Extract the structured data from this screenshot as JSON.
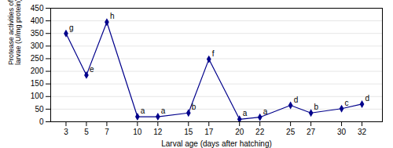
{
  "chart_data": {
    "type": "line",
    "x": [
      3,
      5,
      7,
      10,
      12,
      15,
      17,
      20,
      22,
      25,
      27,
      30,
      32
    ],
    "values": [
      350,
      185,
      395,
      20,
      20,
      35,
      248,
      10,
      18,
      65,
      35,
      52,
      70
    ],
    "labels": [
      "g",
      "e",
      "h",
      "a",
      "a",
      "b",
      "f",
      "a",
      "a",
      "d",
      "b",
      "c",
      "d"
    ],
    "color": "#00008B",
    "marker": "diamond",
    "xlabel": "Larval age (days after hatching)",
    "ylabel": "Protease activities of meagre\nlarvae (U/mg protein)",
    "xlim": [
      1.5,
      34
    ],
    "ylim": [
      0,
      450
    ],
    "xticks": [
      3,
      5,
      7,
      10,
      12,
      15,
      17,
      20,
      22,
      25,
      27,
      30,
      32
    ],
    "yticks": [
      0,
      50,
      100,
      150,
      200,
      250,
      300,
      350,
      400,
      450
    ],
    "grid": true
  }
}
